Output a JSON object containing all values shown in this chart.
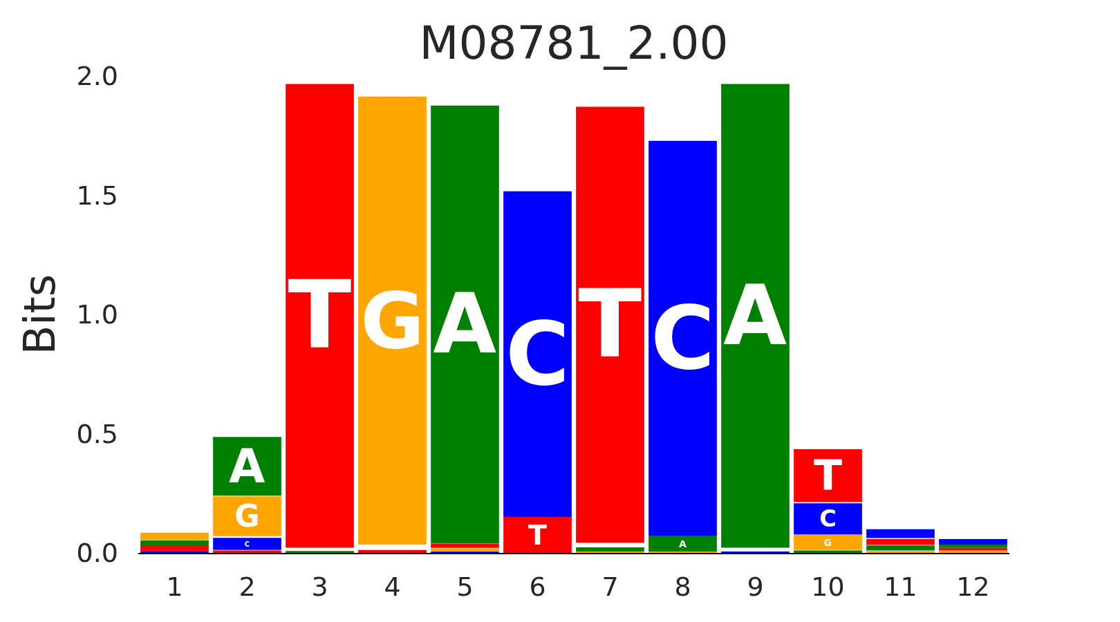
{
  "chart_data": {
    "type": "bar",
    "title": "M08781_2.00",
    "ylabel": "Bits",
    "x": [
      1,
      2,
      3,
      4,
      5,
      6,
      7,
      8,
      9,
      10,
      11,
      12
    ],
    "xlim": [
      0.5,
      12.5
    ],
    "xticks": [
      1,
      2,
      3,
      4,
      5,
      6,
      7,
      8,
      9,
      10,
      11,
      12
    ],
    "ylim": [
      0,
      2.0
    ],
    "yticks": [
      {
        "value": 0,
        "label": "0.0"
      },
      0.5,
      {
        "value": 1,
        "label": "1.0"
      },
      1.5,
      {
        "value": 2,
        "label": "2.0"
      }
    ],
    "grid": false,
    "legend": false,
    "series": [
      {
        "name": "A",
        "color": "#008000",
        "values": [
          0.024,
          0.246,
          0.008,
          null,
          1.836,
          null,
          0.017,
          0.065,
          1.945,
          0.01,
          0.021,
          0.014
        ],
        "base": [
          0.029,
          0.24,
          0.0,
          null,
          0.04,
          null,
          0.006,
          0.005,
          0.022,
          0.0,
          0.01,
          0.021
        ]
      },
      {
        "name": "C",
        "color": "#0000ff",
        "values": [
          0.008,
          0.051,
          null,
          null,
          0.006,
          1.366,
          null,
          1.658,
          0.005,
          0.131,
          0.037,
          0.023
        ],
        "base": [
          0.0,
          0.012,
          null,
          null,
          0.0,
          0.151,
          null,
          0.07,
          0.0,
          0.077,
          0.062,
          0.035
        ]
      },
      {
        "name": "G",
        "color": "#ffa500",
        "values": [
          0.03,
          0.167,
          null,
          1.879,
          0.012,
          null,
          0.006,
          0.005,
          null,
          0.064,
          0.008,
          0.01
        ],
        "base": [
          0.055,
          0.07,
          null,
          0.035,
          0.007,
          null,
          0.0,
          0.0,
          null,
          0.012,
          0.0,
          0.0
        ]
      },
      {
        "name": "T",
        "color": "#ff0000",
        "values": [
          0.02,
          0.01,
          1.945,
          0.012,
          0.018,
          0.151,
          1.828,
          null,
          null,
          0.222,
          0.025,
          0.011
        ],
        "base": [
          0.009,
          0.0,
          0.022,
          0.0,
          0.021,
          0.0,
          0.043,
          null,
          null,
          0.213,
          0.033,
          0.01
        ]
      }
    ]
  }
}
